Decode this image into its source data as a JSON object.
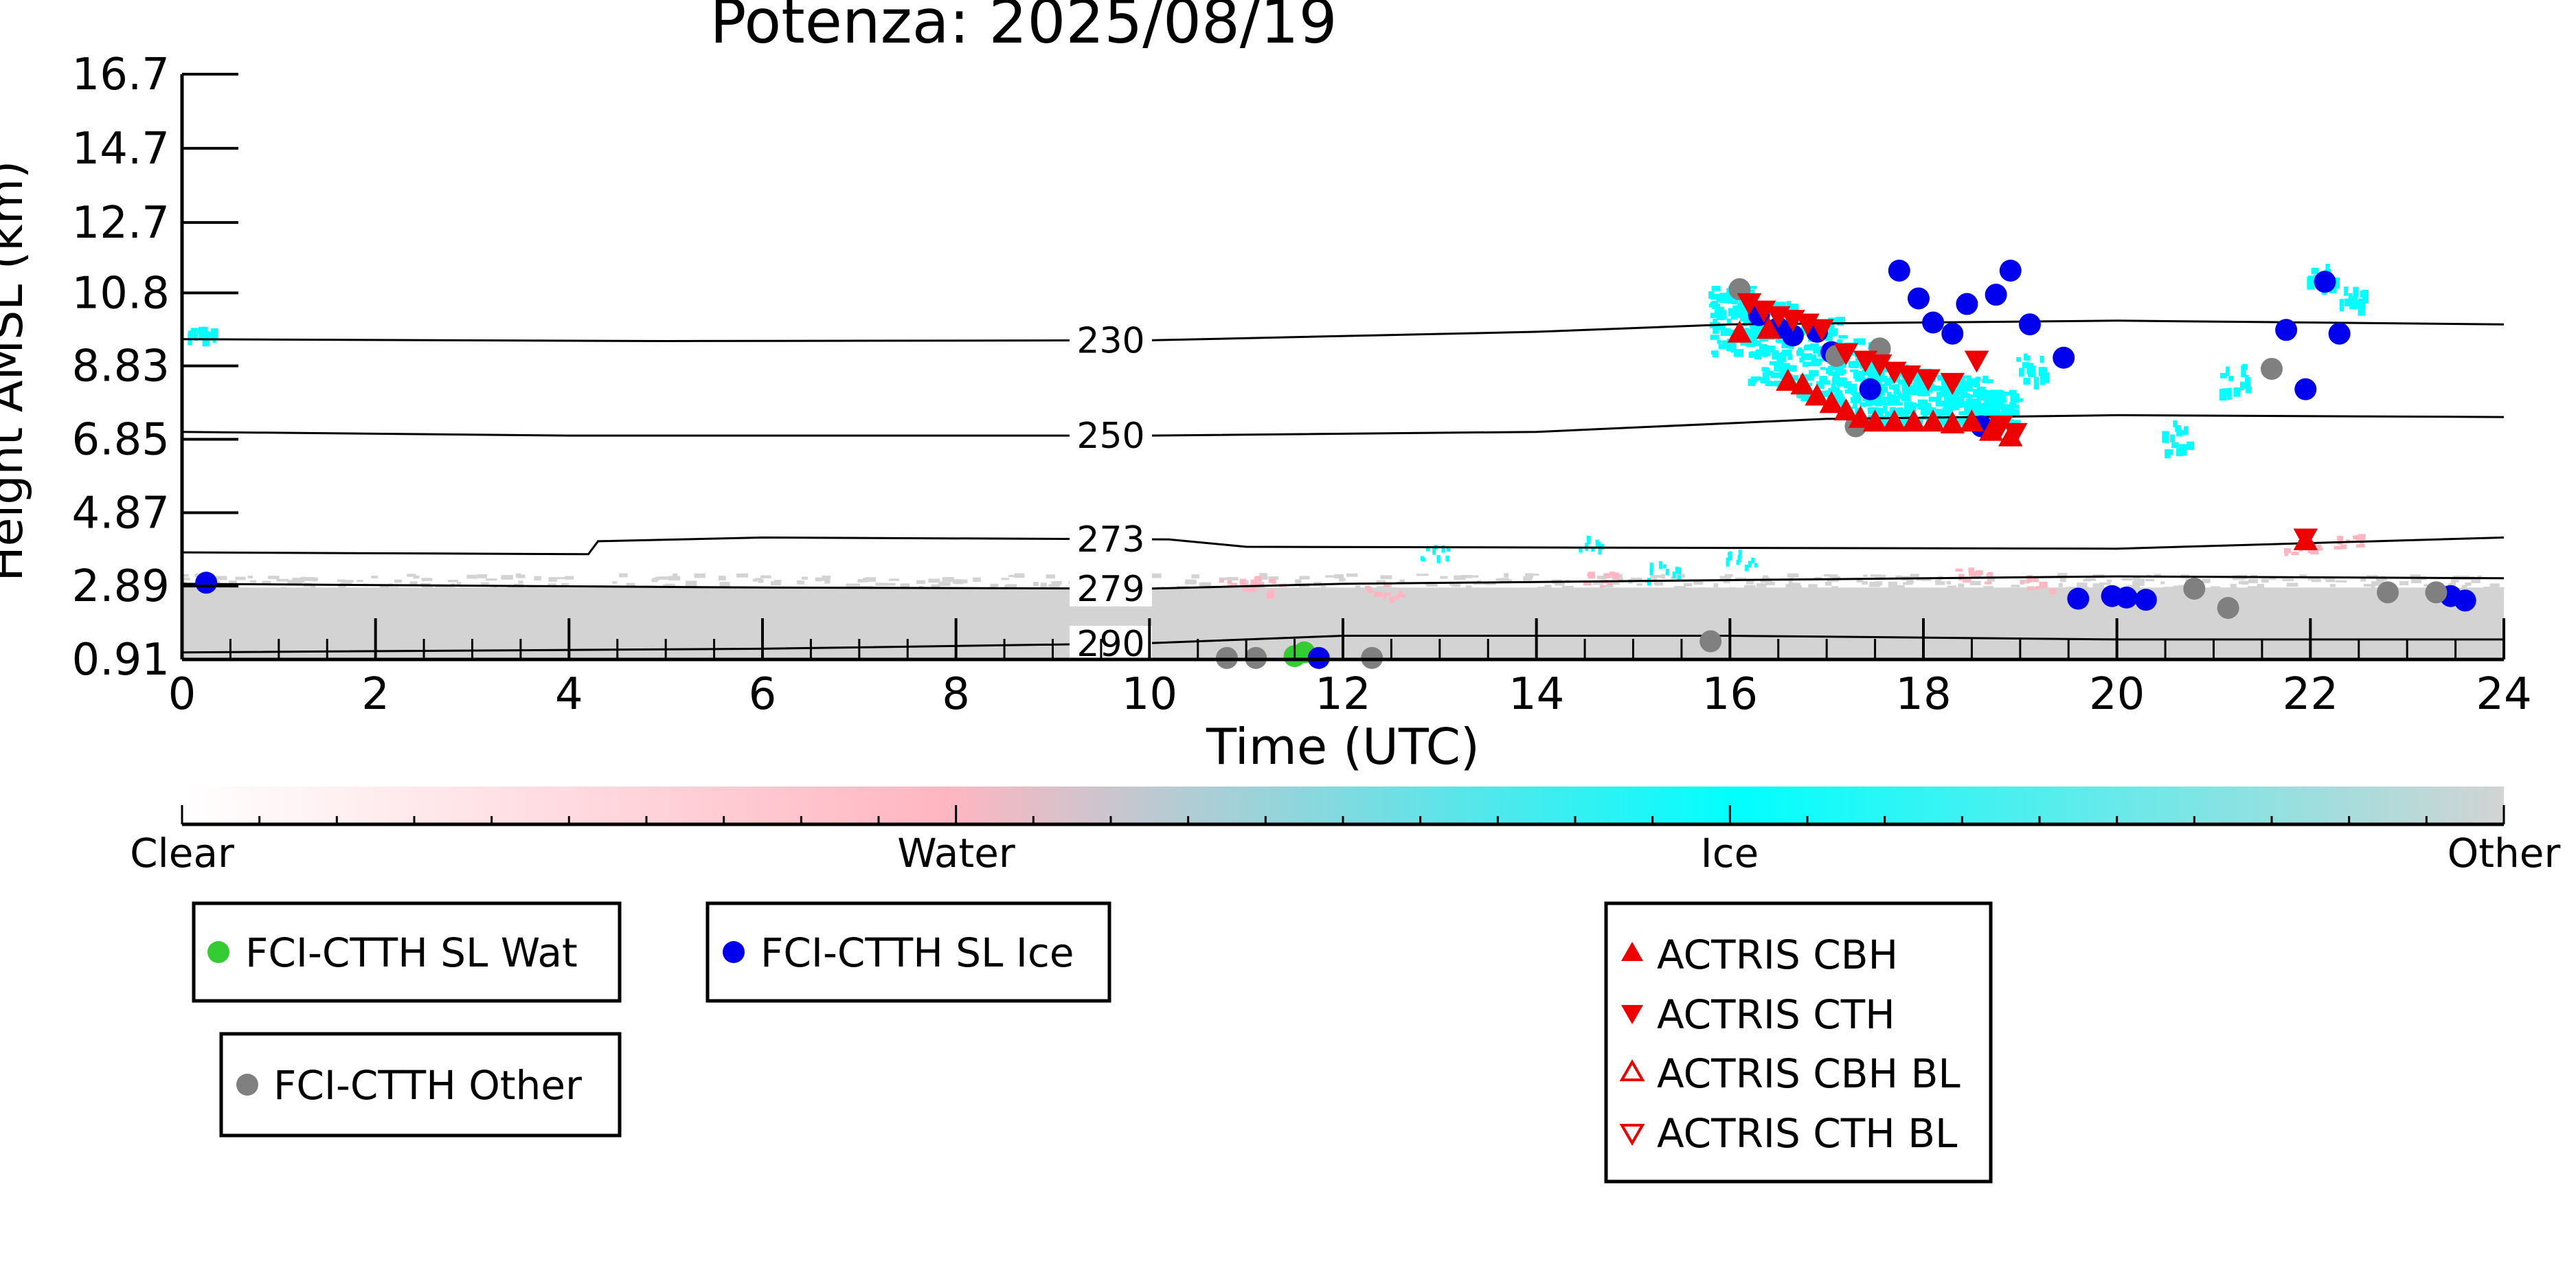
{
  "chart_data": {
    "type": "scatter",
    "title": "Potenza: 2025/08/19",
    "xlabel": "Time (UTC)",
    "ylabel": "Height AMSL (km)",
    "xlim": [
      0,
      24
    ],
    "ylim": [
      0.91,
      16.7
    ],
    "xticks": [
      "0",
      "2",
      "4",
      "6",
      "8",
      "10",
      "12",
      "14",
      "16",
      "18",
      "20",
      "22",
      "24"
    ],
    "yticks": [
      "0.91",
      "2.89",
      "4.87",
      "6.85",
      "8.83",
      "10.8",
      "12.7",
      "14.7",
      "16.7"
    ],
    "colors": {
      "clear": "#ffffff",
      "water": "#ffb6c1",
      "ice": "#00ffff",
      "other": "#d3d3d3",
      "wat_marker": "#33cc33",
      "ice_marker": "#0000ee",
      "other_marker": "#808080",
      "actris": "#ee0000"
    },
    "colorbar": {
      "labels": [
        "Clear",
        "Water",
        "Ice",
        "Other"
      ]
    },
    "isotherms": [
      {
        "label": "230",
        "points": [
          [
            0,
            9.55
          ],
          [
            5,
            9.5
          ],
          [
            10,
            9.52
          ],
          [
            14,
            9.75
          ],
          [
            16,
            9.95
          ],
          [
            20,
            10.05
          ],
          [
            24,
            9.95
          ]
        ]
      },
      {
        "label": "250",
        "points": [
          [
            0,
            7.05
          ],
          [
            4,
            6.95
          ],
          [
            10,
            6.95
          ],
          [
            14,
            7.05
          ],
          [
            17,
            7.4
          ],
          [
            20,
            7.5
          ],
          [
            24,
            7.45
          ]
        ]
      },
      {
        "label": "273",
        "points": [
          [
            0,
            3.8
          ],
          [
            4.2,
            3.75
          ],
          [
            4.3,
            4.1
          ],
          [
            6,
            4.2
          ],
          [
            10.2,
            4.15
          ],
          [
            11,
            3.95
          ],
          [
            16,
            3.92
          ],
          [
            20,
            3.9
          ],
          [
            24,
            4.2
          ]
        ]
      },
      {
        "label": "279",
        "points": [
          [
            0,
            2.95
          ],
          [
            6,
            2.85
          ],
          [
            10,
            2.82
          ],
          [
            12,
            2.95
          ],
          [
            16,
            3.05
          ],
          [
            20,
            3.15
          ],
          [
            24,
            3.1
          ]
        ]
      },
      {
        "label": "290",
        "points": [
          [
            0,
            1.1
          ],
          [
            6,
            1.2
          ],
          [
            10,
            1.35
          ],
          [
            12,
            1.55
          ],
          [
            16,
            1.55
          ],
          [
            20,
            1.45
          ],
          [
            24,
            1.45
          ]
        ]
      }
    ],
    "legend": [
      {
        "name": "FCI-CTTH SL Wat",
        "marker": "circle",
        "color": "#33cc33"
      },
      {
        "name": "FCI-CTTH SL Ice",
        "marker": "circle",
        "color": "#0000ee"
      },
      {
        "name": "FCI-CTTH Other",
        "marker": "circle",
        "color": "#808080"
      },
      {
        "name": "ACTRIS CBH",
        "marker": "triangle-up",
        "color": "#ee0000",
        "filled": true
      },
      {
        "name": "ACTRIS CTH",
        "marker": "triangle-down",
        "color": "#ee0000",
        "filled": true
      },
      {
        "name": "ACTRIS CBH BL",
        "marker": "triangle-up",
        "color": "#ee0000",
        "filled": false
      },
      {
        "name": "ACTRIS CTH BL",
        "marker": "triangle-down",
        "color": "#ee0000",
        "filled": false
      }
    ],
    "series": [
      {
        "name": "FCI-CTTH SL Wat",
        "marker": "circle",
        "color": "#33cc33",
        "x": [
          11.5,
          11.6
        ],
        "y": [
          1.0,
          1.1
        ]
      },
      {
        "name": "FCI-CTTH SL Ice",
        "marker": "circle",
        "color": "#0000ee",
        "x": [
          0.25,
          11.75,
          16.3,
          16.5,
          16.65,
          16.9,
          17.05,
          17.45,
          17.75,
          17.95,
          18.1,
          18.3,
          18.45,
          18.6,
          18.75,
          18.9,
          19.1,
          19.45,
          19.6,
          19.95,
          20.1,
          20.3,
          21.75,
          21.95,
          22.15,
          22.3,
          23.45,
          23.6
        ],
        "y": [
          2.98,
          0.95,
          10.2,
          9.85,
          9.65,
          9.75,
          9.2,
          8.2,
          11.4,
          10.65,
          10.0,
          9.7,
          10.5,
          7.2,
          10.75,
          11.4,
          9.95,
          9.05,
          2.55,
          2.62,
          2.58,
          2.52,
          9.8,
          8.2,
          11.1,
          9.7,
          2.62,
          2.5
        ]
      },
      {
        "name": "FCI-CTTH Other",
        "marker": "circle",
        "color": "#808080",
        "x": [
          10.8,
          11.1,
          12.3,
          15.8,
          16.1,
          17.1,
          17.3,
          17.55,
          20.8,
          21.15,
          21.6,
          22.8,
          23.3
        ],
        "y": [
          0.95,
          0.95,
          0.95,
          1.4,
          10.9,
          9.1,
          7.2,
          9.3,
          2.82,
          2.3,
          8.75,
          2.72,
          2.72
        ]
      },
      {
        "name": "ACTRIS CBH",
        "marker": "triangle-up",
        "color": "#ee0000",
        "filled": true,
        "x": [
          16.1,
          16.4,
          16.6,
          16.75,
          16.9,
          17.05,
          17.2,
          17.35,
          17.5,
          17.7,
          17.9,
          18.1,
          18.3,
          18.5,
          18.7,
          18.9,
          21.95
        ],
        "y": [
          9.7,
          9.8,
          8.4,
          8.3,
          8.0,
          7.8,
          7.6,
          7.4,
          7.3,
          7.3,
          7.3,
          7.3,
          7.25,
          7.3,
          7.05,
          6.9,
          4.1
        ]
      },
      {
        "name": "ACTRIS CTH",
        "marker": "triangle-down",
        "color": "#ee0000",
        "filled": true,
        "x": [
          16.2,
          16.35,
          16.5,
          16.65,
          16.8,
          16.95,
          17.2,
          17.4,
          17.55,
          17.7,
          17.85,
          18.05,
          18.3,
          18.55,
          18.8,
          18.95,
          21.95
        ],
        "y": [
          10.55,
          10.35,
          10.2,
          10.1,
          10.0,
          9.85,
          9.2,
          9.0,
          8.9,
          8.7,
          8.6,
          8.5,
          8.4,
          9.0,
          7.25,
          7.05,
          4.2
        ]
      }
    ]
  }
}
